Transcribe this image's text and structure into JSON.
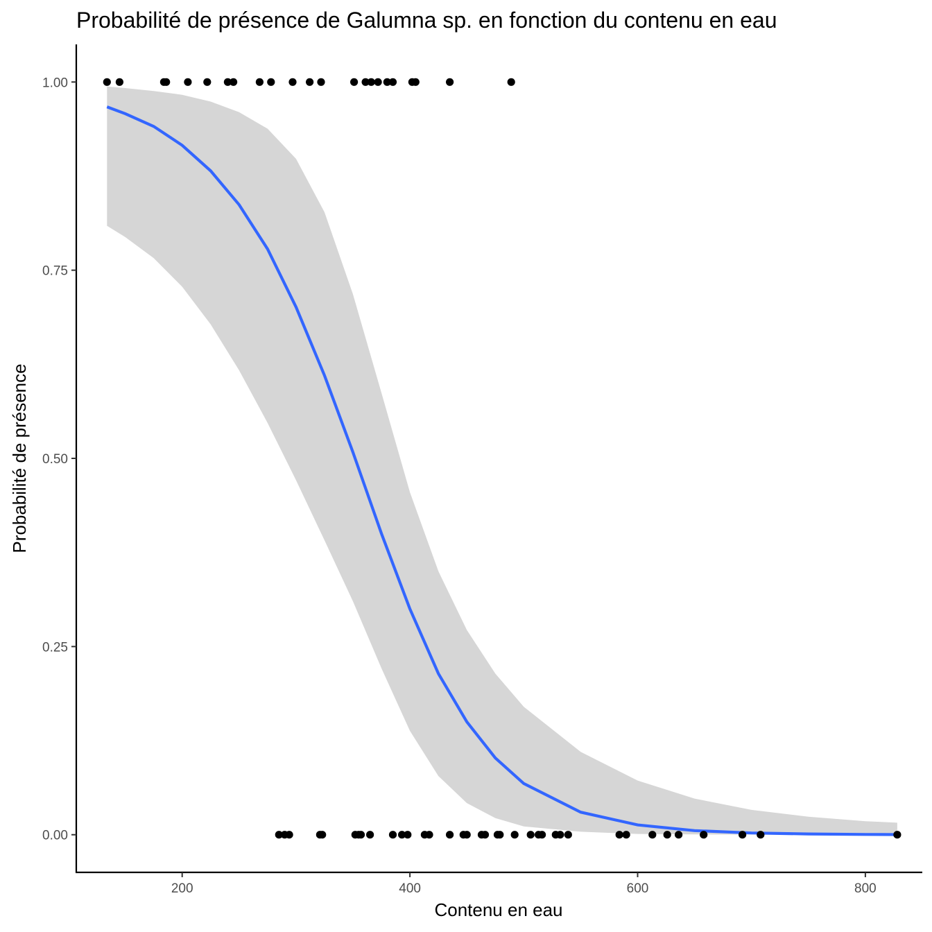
{
  "chart_data": {
    "type": "scatter",
    "title": "Probabilité de présence de Galumna sp. en fonction du contenu en eau",
    "xlabel": "Contenu en eau",
    "ylabel": "Probabilité de présence",
    "xlim": [
      107,
      850
    ],
    "ylim": [
      -0.05,
      1.05
    ],
    "x_ticks": [
      200,
      400,
      600,
      800
    ],
    "x_tick_labels": [
      "200",
      "400",
      "600",
      "800"
    ],
    "y_ticks": [
      0,
      0.25,
      0.5,
      0.75,
      1
    ],
    "y_tick_labels": [
      "0.00",
      "0.25",
      "0.50",
      "0.75",
      "1.00"
    ],
    "grid": false,
    "legend": "none",
    "points": {
      "x": [
        134,
        145,
        184,
        186,
        205,
        222,
        240,
        245,
        268,
        278,
        297,
        312,
        322,
        351,
        361,
        366,
        372,
        380,
        385,
        402,
        405,
        435,
        489,
        285,
        290,
        294,
        321,
        323,
        352,
        355,
        357,
        365,
        385,
        393,
        398,
        413,
        417,
        435,
        447,
        450,
        463,
        466,
        477,
        479,
        492,
        506,
        513,
        516,
        528,
        532,
        539,
        584,
        590,
        613,
        626,
        636,
        658,
        692,
        708,
        828
      ],
      "y": [
        1,
        1,
        1,
        1,
        1,
        1,
        1,
        1,
        1,
        1,
        1,
        1,
        1,
        1,
        1,
        1,
        1,
        1,
        1,
        1,
        1,
        1,
        1,
        0,
        0,
        0,
        0,
        0,
        0,
        0,
        0,
        0,
        0,
        0,
        0,
        0,
        0,
        0,
        0,
        0,
        0,
        0,
        0,
        0,
        0,
        0,
        0,
        0,
        0,
        0,
        0,
        0,
        0,
        0,
        0,
        0,
        0,
        0,
        0,
        0
      ]
    },
    "fit": {
      "name": "",
      "x": [
        134,
        150,
        175,
        200,
        225,
        250,
        275,
        300,
        325,
        350,
        375,
        400,
        425,
        450,
        475,
        500,
        550,
        600,
        650,
        700,
        750,
        800,
        828
      ],
      "y": [
        0.967,
        0.958,
        0.941,
        0.916,
        0.882,
        0.837,
        0.778,
        0.701,
        0.61,
        0.508,
        0.4,
        0.3,
        0.214,
        0.15,
        0.102,
        0.068,
        0.03,
        0.013,
        0.0055,
        0.0023,
        0.001,
        0.0004,
        0.0002
      ],
      "lower": [
        0.809,
        0.794,
        0.766,
        0.728,
        0.678,
        0.617,
        0.547,
        0.471,
        0.391,
        0.31,
        0.221,
        0.138,
        0.078,
        0.042,
        0.022,
        0.011,
        0.004,
        0.001,
        0.0004,
        0.0002,
        0.0001,
        0.0,
        0.0
      ],
      "upper": [
        0.994,
        0.992,
        0.988,
        0.983,
        0.974,
        0.96,
        0.938,
        0.898,
        0.827,
        0.718,
        0.587,
        0.455,
        0.35,
        0.272,
        0.214,
        0.17,
        0.11,
        0.072,
        0.048,
        0.033,
        0.024,
        0.018,
        0.016
      ],
      "line_color": "#3366FF",
      "band_color": "#D6D6D6"
    },
    "point_color": "#000000"
  }
}
